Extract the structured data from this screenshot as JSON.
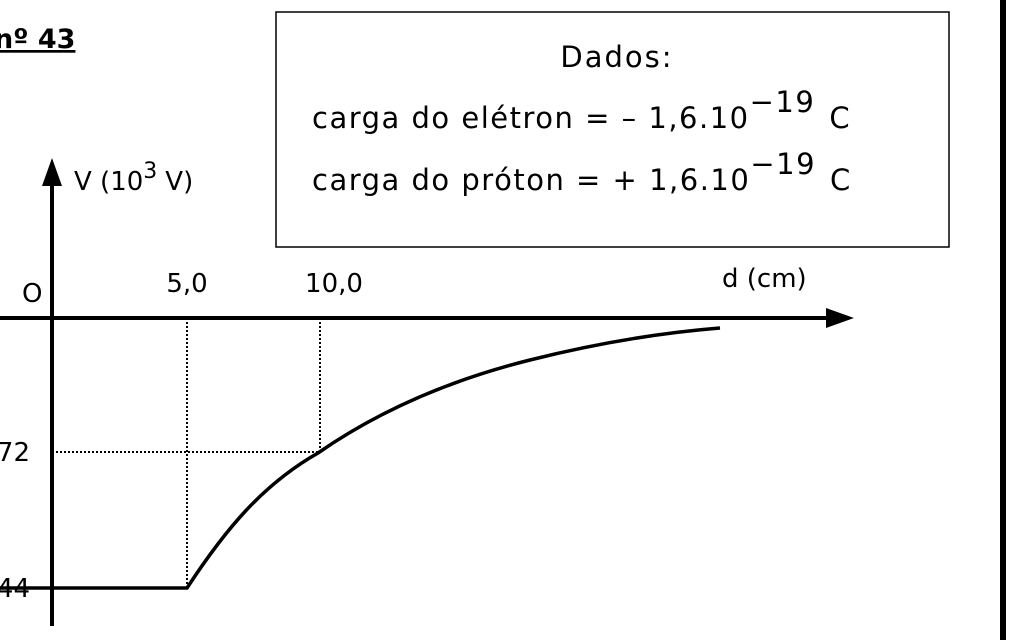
{
  "header": {
    "title": "nº 43"
  },
  "data_box": {
    "title": "Dados:",
    "lines": [
      {
        "text": "carga do elétron = – 1,6.10",
        "exponent": "−19",
        "unit": "C"
      },
      {
        "text": "carga do próton = + 1,6.10",
        "exponent": "−19",
        "unit": "C"
      }
    ]
  },
  "graph": {
    "y_axis_label": {
      "text": "V (10",
      "exponent": "3",
      "unit": "V)"
    },
    "x_axis_label": "d (cm)",
    "origin_label": "O",
    "x_ticks": [
      "5,0",
      "10,0"
    ],
    "y_ticks": [
      "72",
      "44"
    ]
  }
}
